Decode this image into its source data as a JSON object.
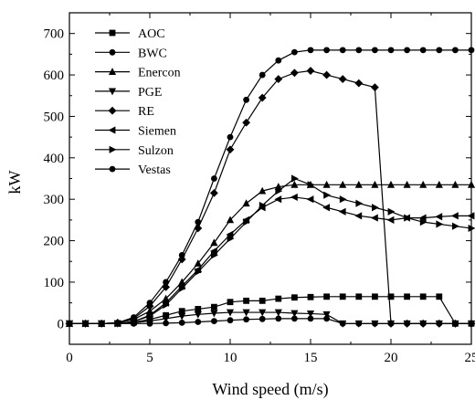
{
  "chart_data": {
    "type": "line",
    "xlabel": "Wind speed (m/s)",
    "ylabel": "kW",
    "xlim": [
      0,
      25
    ],
    "ylim": [
      -50,
      750
    ],
    "xticks": [
      0,
      5,
      10,
      15,
      20,
      25
    ],
    "yticks": [
      0,
      100,
      200,
      300,
      400,
      500,
      600,
      700
    ],
    "grid": false,
    "legend": "top-left",
    "x": [
      0,
      1,
      2,
      3,
      4,
      5,
      6,
      7,
      8,
      9,
      10,
      11,
      12,
      13,
      14,
      15,
      16,
      17,
      18,
      19,
      20,
      21,
      22,
      23,
      24,
      25
    ],
    "series": [
      {
        "name": "AOC",
        "marker": "square",
        "values": [
          0,
          0,
          0,
          0,
          3,
          10,
          20,
          30,
          35,
          40,
          52,
          55,
          55,
          60,
          63,
          64,
          65,
          65,
          65,
          65,
          65,
          65,
          65,
          65,
          0,
          0
        ]
      },
      {
        "name": "BWC",
        "marker": "circle",
        "values": [
          0,
          0,
          0,
          0,
          0,
          0,
          1,
          2,
          4,
          6,
          8,
          10,
          11,
          12,
          12,
          12,
          12,
          0,
          0,
          0,
          0,
          0,
          0,
          0,
          0,
          0
        ]
      },
      {
        "name": "Enercon",
        "marker": "triangle-up",
        "values": [
          0,
          0,
          0,
          2,
          10,
          30,
          60,
          100,
          145,
          195,
          250,
          290,
          320,
          330,
          335,
          335,
          335,
          335,
          335,
          335,
          335,
          335,
          335,
          335,
          335,
          335
        ]
      },
      {
        "name": "PGE",
        "marker": "triangle-down",
        "values": [
          0,
          0,
          0,
          0,
          2,
          6,
          12,
          18,
          22,
          25,
          27,
          27,
          27,
          27,
          25,
          24,
          22,
          0,
          0,
          0,
          0,
          0,
          0,
          0,
          0,
          0
        ]
      },
      {
        "name": "RE",
        "marker": "diamond",
        "values": [
          0,
          0,
          0,
          2,
          12,
          42,
          88,
          155,
          230,
          315,
          420,
          485,
          545,
          590,
          605,
          610,
          600,
          590,
          580,
          570,
          0,
          0,
          0,
          0,
          0,
          0
        ]
      },
      {
        "name": "Siemen",
        "marker": "triangle-left",
        "values": [
          0,
          0,
          0,
          0,
          5,
          20,
          50,
          90,
          130,
          175,
          215,
          250,
          280,
          300,
          305,
          300,
          280,
          270,
          260,
          255,
          250,
          255,
          255,
          258,
          260,
          260
        ]
      },
      {
        "name": "Sulzon",
        "marker": "triangle-right",
        "values": [
          0,
          0,
          0,
          0,
          5,
          18,
          45,
          85,
          125,
          165,
          205,
          245,
          285,
          320,
          350,
          335,
          310,
          300,
          290,
          280,
          270,
          255,
          245,
          240,
          235,
          230
        ]
      },
      {
        "name": "Vestas",
        "marker": "circle",
        "values": [
          0,
          0,
          0,
          2,
          15,
          50,
          100,
          165,
          245,
          350,
          450,
          540,
          600,
          635,
          655,
          660,
          660,
          660,
          660,
          660,
          660,
          660,
          660,
          660,
          660,
          660
        ]
      }
    ]
  }
}
